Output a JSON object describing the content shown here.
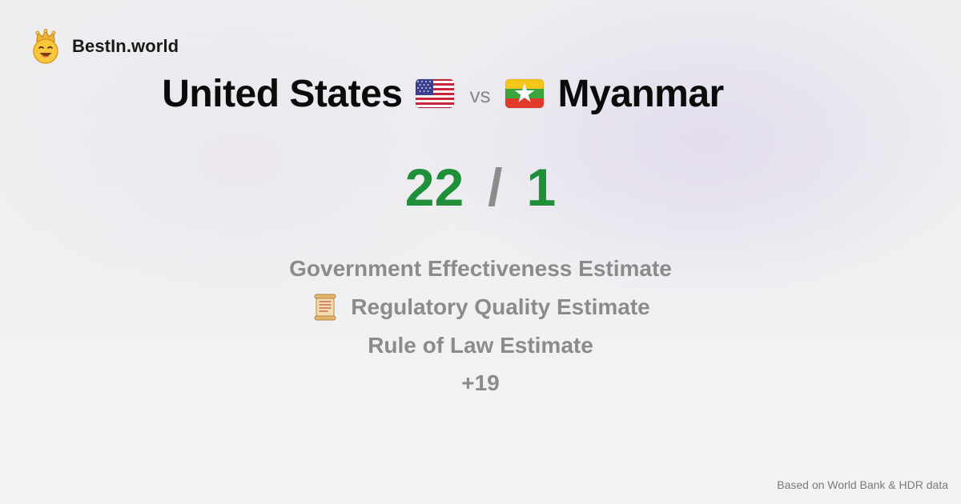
{
  "brand": {
    "name": "BestIn.world",
    "logo_icon": "crown-smiley-icon"
  },
  "comparison": {
    "left": {
      "country": "United States",
      "flag_icon": "us-flag-icon"
    },
    "separator": "vs",
    "right": {
      "country": "Myanmar",
      "flag_icon": "myanmar-flag-icon"
    }
  },
  "score": {
    "left": "22",
    "separator": "/",
    "right": "1",
    "color": "#1f8f3a"
  },
  "indicators": [
    {
      "label": "Government Effectiveness Estimate",
      "icon": ""
    },
    {
      "label": "Regulatory Quality Estimate",
      "icon": "scroll-icon"
    },
    {
      "label": "Rule of Law Estimate",
      "icon": ""
    }
  ],
  "more_count": "+19",
  "footer": {
    "source_note": "Based on World Bank & HDR data"
  }
}
